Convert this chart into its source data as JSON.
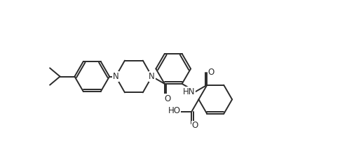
{
  "bg_color": "#ffffff",
  "line_color": "#2a2a2a",
  "line_width": 1.4,
  "figsize": [
    5.06,
    2.19
  ],
  "dpi": 100,
  "xlim": [
    0,
    10.1
  ],
  "ylim": [
    0,
    4.38
  ]
}
